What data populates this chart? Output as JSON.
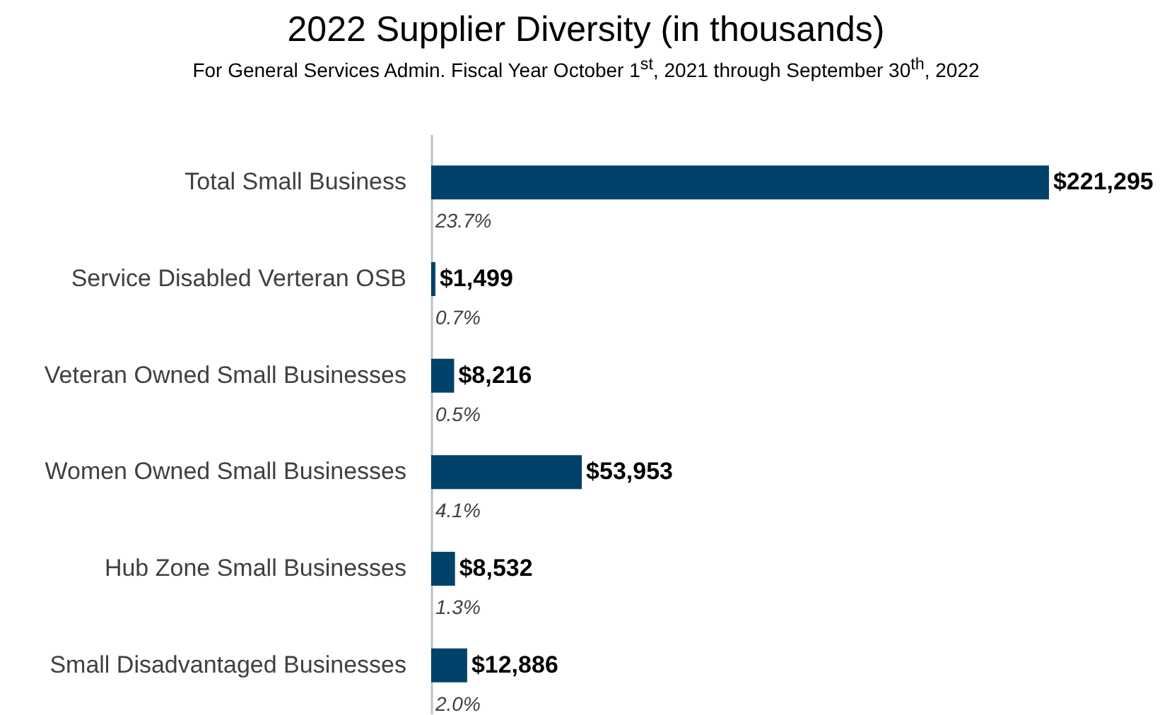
{
  "chart_data": {
    "type": "bar",
    "orientation": "horizontal",
    "title": "2022 Supplier Diversity (in thousands)",
    "subtitle": "For General Services Admin. Fiscal Year October 1$^{st}$, 2021 through September 30$^{th}$, 2022",
    "categories": [
      "Total Small Business",
      "Service Disabled Verteran OSB",
      "Veteran Owned Small Businesses",
      "Women Owned Small Businesses",
      "Hub Zone Small Businesses",
      "Small Disadvantaged Businesses"
    ],
    "values": [
      221295,
      1499,
      8216,
      53953,
      8532,
      12886
    ],
    "value_labels": [
      "$221,295",
      "$1,499",
      "$8,216",
      "$53,953",
      "$8,532",
      "$12,886"
    ],
    "color": "#01426a",
    "annotations": [
      "23.7%",
      "0.7%",
      "0.5%",
      "4.1%",
      "1.3%",
      "2.0%"
    ]
  }
}
